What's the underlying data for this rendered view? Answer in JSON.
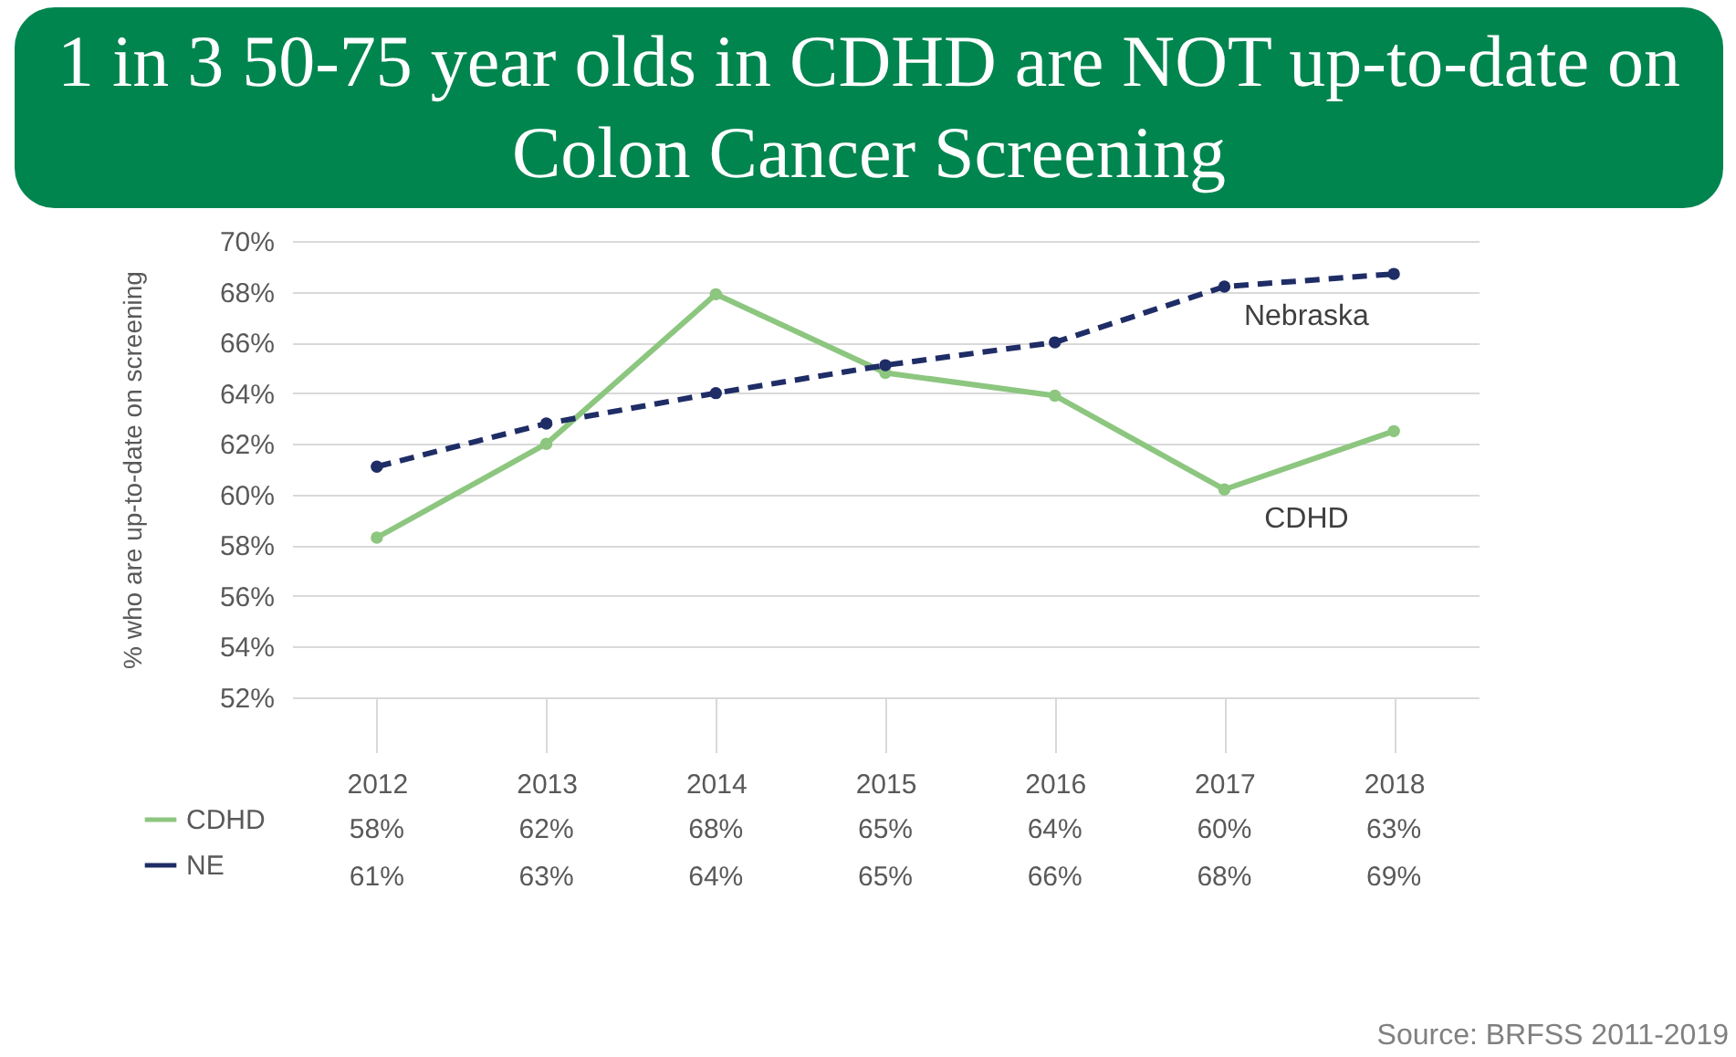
{
  "chart_data": {
    "type": "line",
    "title": "1 in 3 50-75 year olds in CDHD are NOT up-to-date on Colon Cancer Screening",
    "ylabel": "% who are up-to-date on screening",
    "categories": [
      "2012",
      "2013",
      "2014",
      "2015",
      "2016",
      "2017",
      "2018"
    ],
    "series": [
      {
        "name": "CDHD",
        "color": "#8cc67f",
        "line_style": "solid",
        "values": [
          58.3,
          62.0,
          67.9,
          64.8,
          63.9,
          60.2,
          62.5
        ],
        "value_labels": [
          "58%",
          "62%",
          "68%",
          "65%",
          "64%",
          "60%",
          "63%"
        ]
      },
      {
        "name": "NE",
        "color": "#1f2d66",
        "line_style": "dashed",
        "values": [
          61.1,
          62.8,
          64.0,
          65.1,
          66.0,
          68.2,
          68.7
        ],
        "value_labels": [
          "61%",
          "63%",
          "64%",
          "65%",
          "66%",
          "68%",
          "69%"
        ]
      }
    ],
    "ylim": [
      52,
      70
    ],
    "yticks": [
      {
        "value": 52,
        "label": "52%"
      },
      {
        "value": 54,
        "label": "54%"
      },
      {
        "value": 56,
        "label": "56%"
      },
      {
        "value": 58,
        "label": "58%"
      },
      {
        "value": 60,
        "label": "60%"
      },
      {
        "value": 62,
        "label": "62%"
      },
      {
        "value": 64,
        "label": "64%"
      },
      {
        "value": 66,
        "label": "66%"
      },
      {
        "value": 68,
        "label": "68%"
      },
      {
        "value": 70,
        "label": "70%"
      }
    ],
    "grid": "y",
    "marker": "circle",
    "legend": "bottom left",
    "annotations": [
      {
        "text": "Nebraska",
        "x": "2017",
        "y": 68.2
      },
      {
        "text": "CDHD",
        "x": "2017",
        "y": 60.2
      },
      "Source: BRFSS 2011-2019"
    ]
  }
}
